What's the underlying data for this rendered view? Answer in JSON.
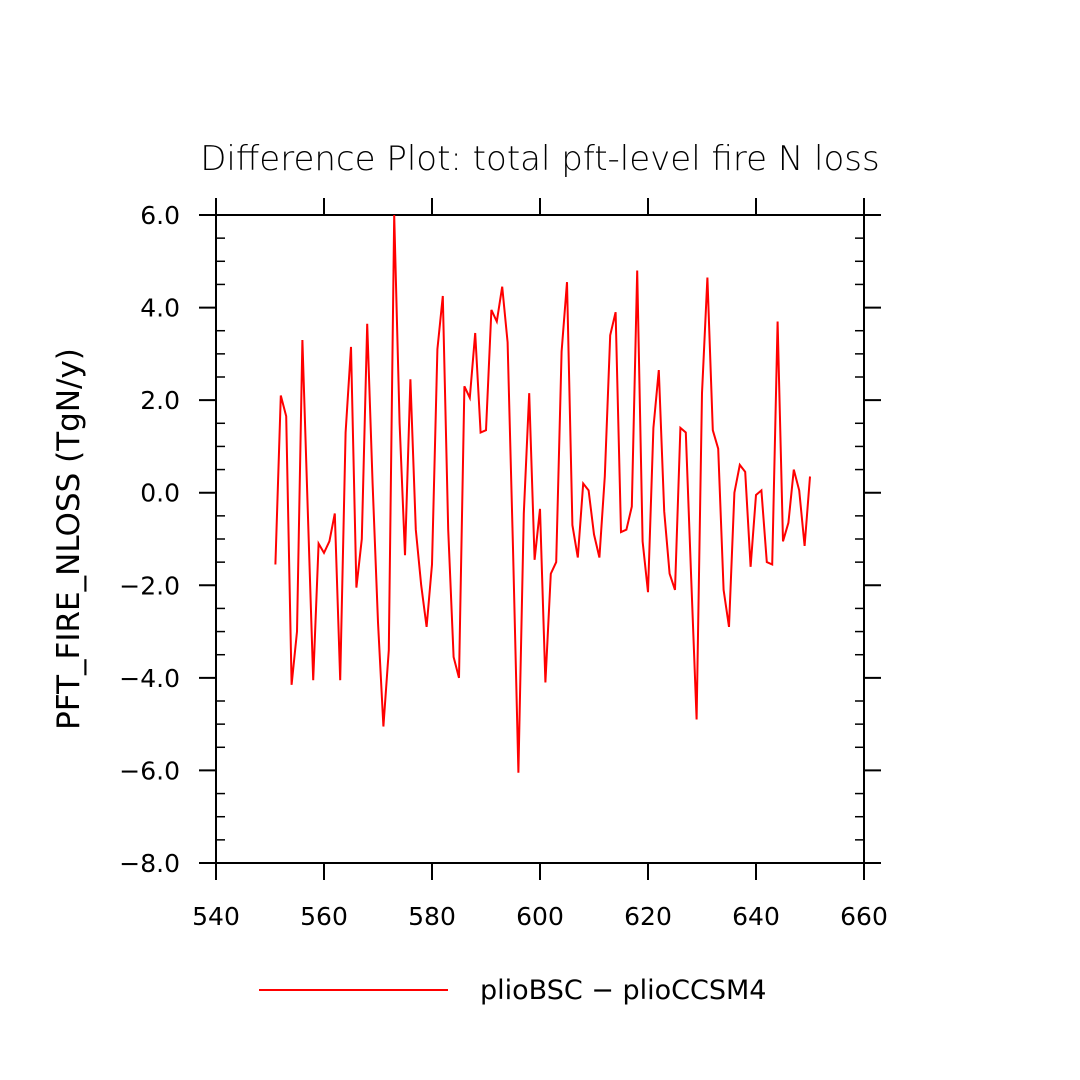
{
  "chart_data": {
    "type": "line",
    "title": "Difference Plot: total pft-level fire N loss",
    "xlabel": "",
    "ylabel": "PFT_FIRE_NLOSS  (TgN/y)",
    "xlim": [
      540,
      660
    ],
    "ylim": [
      -8,
      6
    ],
    "xticks": [
      540,
      560,
      580,
      600,
      620,
      640,
      660
    ],
    "xtick_labels": [
      "540",
      "560",
      "580",
      "600",
      "620",
      "640",
      "660"
    ],
    "yticks": [
      -8,
      -6,
      -4,
      -2,
      0,
      2,
      4,
      6
    ],
    "ytick_labels": [
      "−8.0",
      "−6.0",
      "−4.0",
      "−2.0",
      "0.0",
      "2.0",
      "4.0",
      "6.0"
    ],
    "grid": false,
    "legend_position": "bottom",
    "series": [
      {
        "name": "plioBSC − plioCCSM4",
        "color": "#ff0000",
        "x": [
          551,
          552,
          553,
          554,
          555,
          556,
          557,
          558,
          559,
          560,
          561,
          562,
          563,
          564,
          565,
          566,
          567,
          568,
          569,
          570,
          571,
          572,
          573,
          574,
          575,
          576,
          577,
          578,
          579,
          580,
          581,
          582,
          583,
          584,
          585,
          586,
          587,
          588,
          589,
          590,
          591,
          592,
          593,
          594,
          595,
          596,
          597,
          598,
          599,
          600,
          601,
          602,
          603,
          604,
          605,
          606,
          607,
          608,
          609,
          610,
          611,
          612,
          613,
          614,
          615,
          616,
          617,
          618,
          619,
          620,
          621,
          622,
          623,
          624,
          625,
          626,
          627,
          628,
          629,
          630,
          631,
          632,
          633,
          634,
          635,
          636,
          637,
          638,
          639,
          640,
          641,
          642,
          643,
          644,
          645,
          646,
          647,
          648,
          649,
          650
        ],
        "y": [
          -1.55,
          2.1,
          1.65,
          -4.15,
          -3.0,
          3.3,
          -0.4,
          -4.05,
          -1.1,
          -1.3,
          -1.05,
          -0.45,
          -4.05,
          1.3,
          3.15,
          -2.05,
          -1.0,
          3.65,
          0.2,
          -2.8,
          -5.05,
          -3.4,
          6.0,
          1.5,
          -1.35,
          2.45,
          -0.8,
          -2.0,
          -2.9,
          -1.55,
          3.1,
          4.25,
          -0.8,
          -3.55,
          -4.0,
          2.3,
          2.05,
          3.45,
          1.3,
          1.35,
          3.95,
          3.7,
          4.45,
          3.25,
          -1.2,
          -6.05,
          -0.45,
          2.15,
          -1.45,
          -0.35,
          -4.1,
          -1.75,
          -1.5,
          3.05,
          4.55,
          -0.7,
          -1.4,
          0.2,
          0.05,
          -0.9,
          -1.4,
          0.35,
          3.4,
          3.9,
          -0.85,
          -0.8,
          -0.3,
          4.8,
          -1.05,
          -2.15,
          1.4,
          2.65,
          -0.4,
          -1.75,
          -2.1,
          1.4,
          1.3,
          -1.85,
          -4.9,
          2.15,
          4.65,
          1.35,
          0.95,
          -2.1,
          -2.9,
          0.0,
          0.6,
          0.45,
          -1.6,
          -0.05,
          0.05,
          -1.5,
          -1.55,
          3.7,
          -1.05,
          -0.65,
          0.5,
          0.05,
          -1.15,
          0.35
        ]
      }
    ]
  }
}
